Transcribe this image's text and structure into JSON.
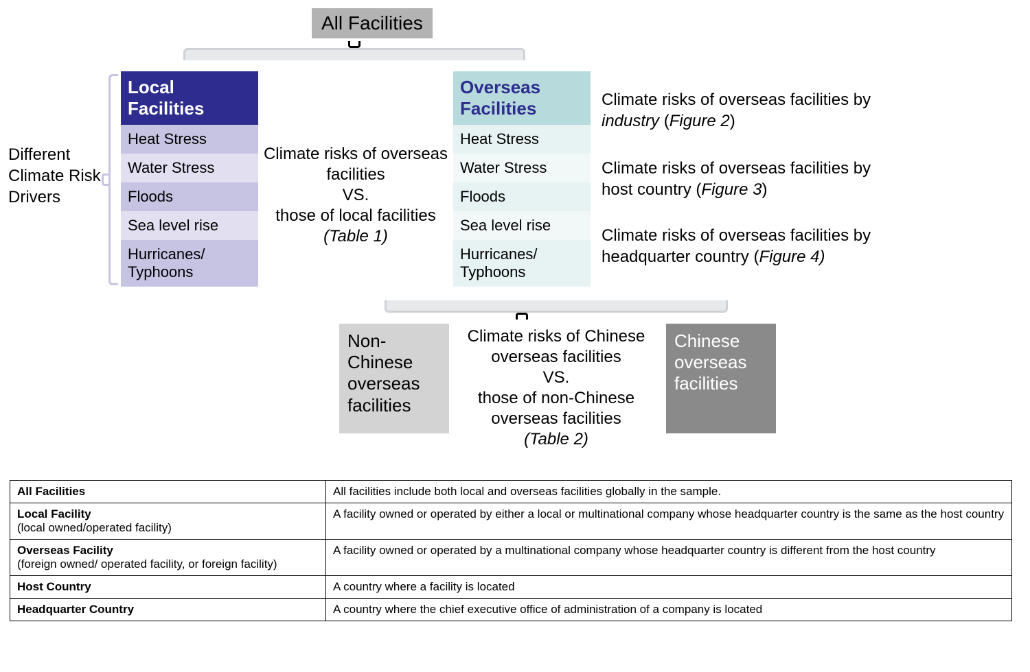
{
  "colors": {
    "top_box_bg": "#b3b3b3",
    "local_header_bg": "#2e2c8e",
    "local_header_text": "#ffffff",
    "local_row_a": "#c6c3e3",
    "local_row_b": "#e1dff0",
    "overseas_header_bg": "#b7dbdd",
    "overseas_header_text": "#2e2c8e",
    "overseas_row_a": "#e7f2f2",
    "overseas_row_b": "#f2f8f8",
    "nonchinese_bg": "#d3d3d3",
    "chinese_bg": "#8a8a8a",
    "bracket_dark": "#000000",
    "bracket_light": "#cfd2d6",
    "bracket_purple": "#c6c3e3"
  },
  "top_box": "All Facilities",
  "side_label": "Different Climate Risk Drivers",
  "local": {
    "title": "Local Facilities",
    "rows": [
      "Heat Stress",
      "Water Stress",
      "Floods",
      "Sea level rise",
      "Hurricanes/ Typhoons"
    ]
  },
  "overseas": {
    "title": "Overseas Facilities",
    "rows": [
      "Heat Stress",
      "Water Stress",
      "Floods",
      "Sea level rise",
      "Hurricanes/ Typhoons"
    ]
  },
  "center1": {
    "l1": "Climate risks of overseas facilities",
    "l2": "VS.",
    "l3": "those of local facilities",
    "l4": "(Table 1)"
  },
  "right": {
    "r1a": "Climate risks of overseas facilities by ",
    "r1b": "industry",
    "r1c": " (",
    "r1d": "Figure 2",
    "r1e": ")",
    "r2a": "Climate risks of overseas facilities by host country (",
    "r2b": "Figure 3",
    "r2c": ")",
    "r3a": "Climate risks of overseas facilities by headquarter country (",
    "r3b": "Figure 4)",
    "r3c": ""
  },
  "sub": {
    "nonchinese": "Non-Chinese overseas facilities",
    "chinese": "Chinese overseas facilities"
  },
  "center2": {
    "l1": "Climate risks of Chinese overseas facilities",
    "l2": "VS.",
    "l3": "those of non-Chinese overseas facilities",
    "l4": "(Table 2)"
  },
  "defs": {
    "rows": [
      {
        "term": "All Facilities",
        "sub": "",
        "def": "All facilities include both local and overseas facilities globally in the sample."
      },
      {
        "term": "Local Facility",
        "sub": "(local owned/operated facility)",
        "def": "A facility owned or operated by either a local or multinational company whose headquarter country is the same as the host country"
      },
      {
        "term": "Overseas Facility",
        "sub": "(foreign owned/ operated facility, or foreign facility)",
        "def": "A facility owned or operated by a multinational company whose headquarter country is different from the host country"
      },
      {
        "term": "Host Country",
        "sub": "",
        "def": "A country where a facility is located"
      },
      {
        "term": "Headquarter Country",
        "sub": "",
        "def": "A country where the chief executive office of administration of a company is located"
      }
    ]
  }
}
